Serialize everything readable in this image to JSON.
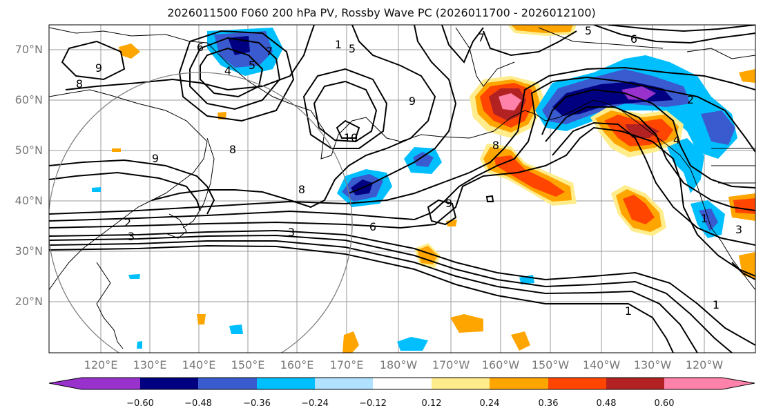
{
  "title": "2026011500 F060 200 hPa PV, Rossby Wave PC (2026011700 - 2026012100)",
  "lat_labels": [
    "70°N",
    "60°N",
    "50°N",
    "40°N",
    "30°N",
    "20°N"
  ],
  "lon_labels": [
    "120°E",
    "130°E",
    "140°E",
    "150°E",
    "160°E",
    "170°E",
    "180°W",
    "170°W",
    "160°W",
    "150°W",
    "140°W",
    "130°W",
    "120°W"
  ],
  "colorbar": {
    "ticks": [
      "−0.60",
      "−0.48",
      "−0.36",
      "−0.24",
      "−0.12",
      "0.12",
      "0.24",
      "0.36",
      "0.48",
      "0.60"
    ],
    "colors": [
      "#9932cc",
      "#000080",
      "#3a5bcf",
      "#00bfff",
      "#b0e2ff",
      "#ffffff",
      "#ffec8b",
      "#ffa500",
      "#ff4500",
      "#b22222",
      "#ff82ab"
    ]
  },
  "contour_labels": [
    "6",
    "7",
    "5",
    "4",
    "9",
    "8",
    "9",
    "8",
    "10",
    "9",
    "8",
    "6",
    "3",
    "5",
    "6",
    "7",
    "2",
    "4",
    "3",
    "1",
    "1",
    "1",
    "5",
    "1",
    "2",
    "3",
    "9",
    "8"
  ],
  "colors": {
    "contour": "#000000",
    "coast": "#000000",
    "grid": "#999999",
    "circle": "#808080"
  }
}
